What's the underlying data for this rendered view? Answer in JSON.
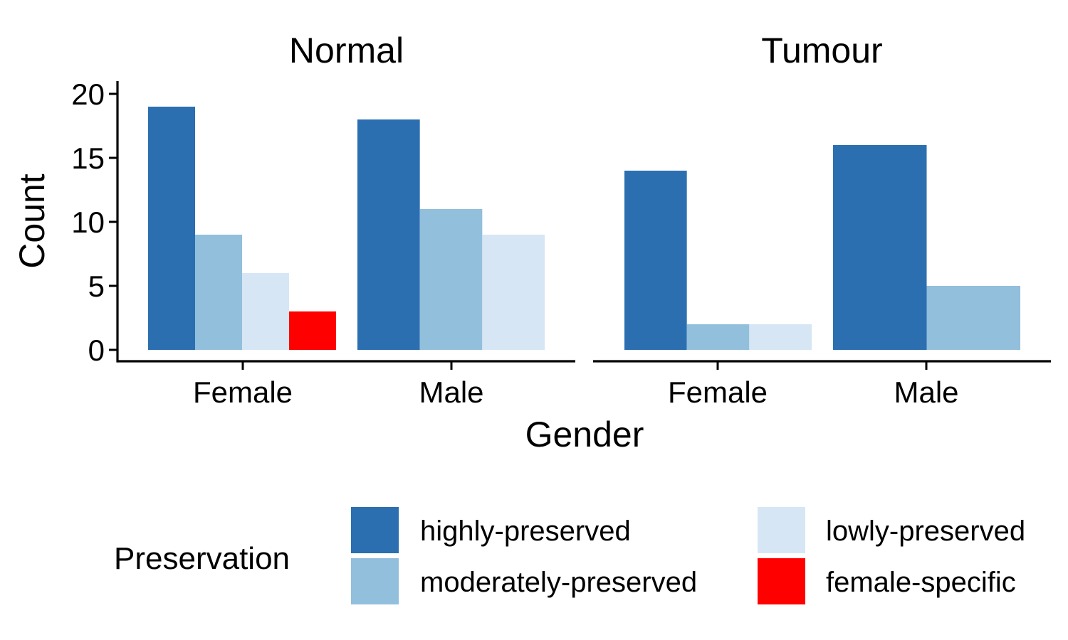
{
  "chart_data": {
    "type": "bar",
    "xlabel": "Gender",
    "ylabel": "Count",
    "ylim": [
      0,
      20
    ],
    "yticks": [
      0,
      5,
      10,
      15,
      20
    ],
    "grid": false,
    "legend": {
      "title": "Preservation",
      "placement": "bottom",
      "entries": [
        {
          "name": "highly-preserved",
          "color": "#2B6FB1"
        },
        {
          "name": "moderately-preserved",
          "color": "#92BFDC"
        },
        {
          "name": "lowly-preserved",
          "color": "#D6E6F5"
        },
        {
          "name": "female-specific",
          "color": "#FF0000"
        }
      ]
    },
    "facets": [
      {
        "title": "Normal",
        "categories": [
          {
            "name": "Female",
            "bars": [
              {
                "series": "highly-preserved",
                "value": 19
              },
              {
                "series": "moderately-preserved",
                "value": 9
              },
              {
                "series": "lowly-preserved",
                "value": 6
              },
              {
                "series": "female-specific",
                "value": 3
              }
            ]
          },
          {
            "name": "Male",
            "bars": [
              {
                "series": "highly-preserved",
                "value": 18
              },
              {
                "series": "moderately-preserved",
                "value": 11
              },
              {
                "series": "lowly-preserved",
                "value": 9
              }
            ]
          }
        ]
      },
      {
        "title": "Tumour",
        "categories": [
          {
            "name": "Female",
            "bars": [
              {
                "series": "highly-preserved",
                "value": 14
              },
              {
                "series": "moderately-preserved",
                "value": 2
              },
              {
                "series": "lowly-preserved",
                "value": 2
              }
            ]
          },
          {
            "name": "Male",
            "bars": [
              {
                "series": "highly-preserved",
                "value": 16
              },
              {
                "series": "moderately-preserved",
                "value": 5
              }
            ]
          }
        ]
      }
    ]
  }
}
